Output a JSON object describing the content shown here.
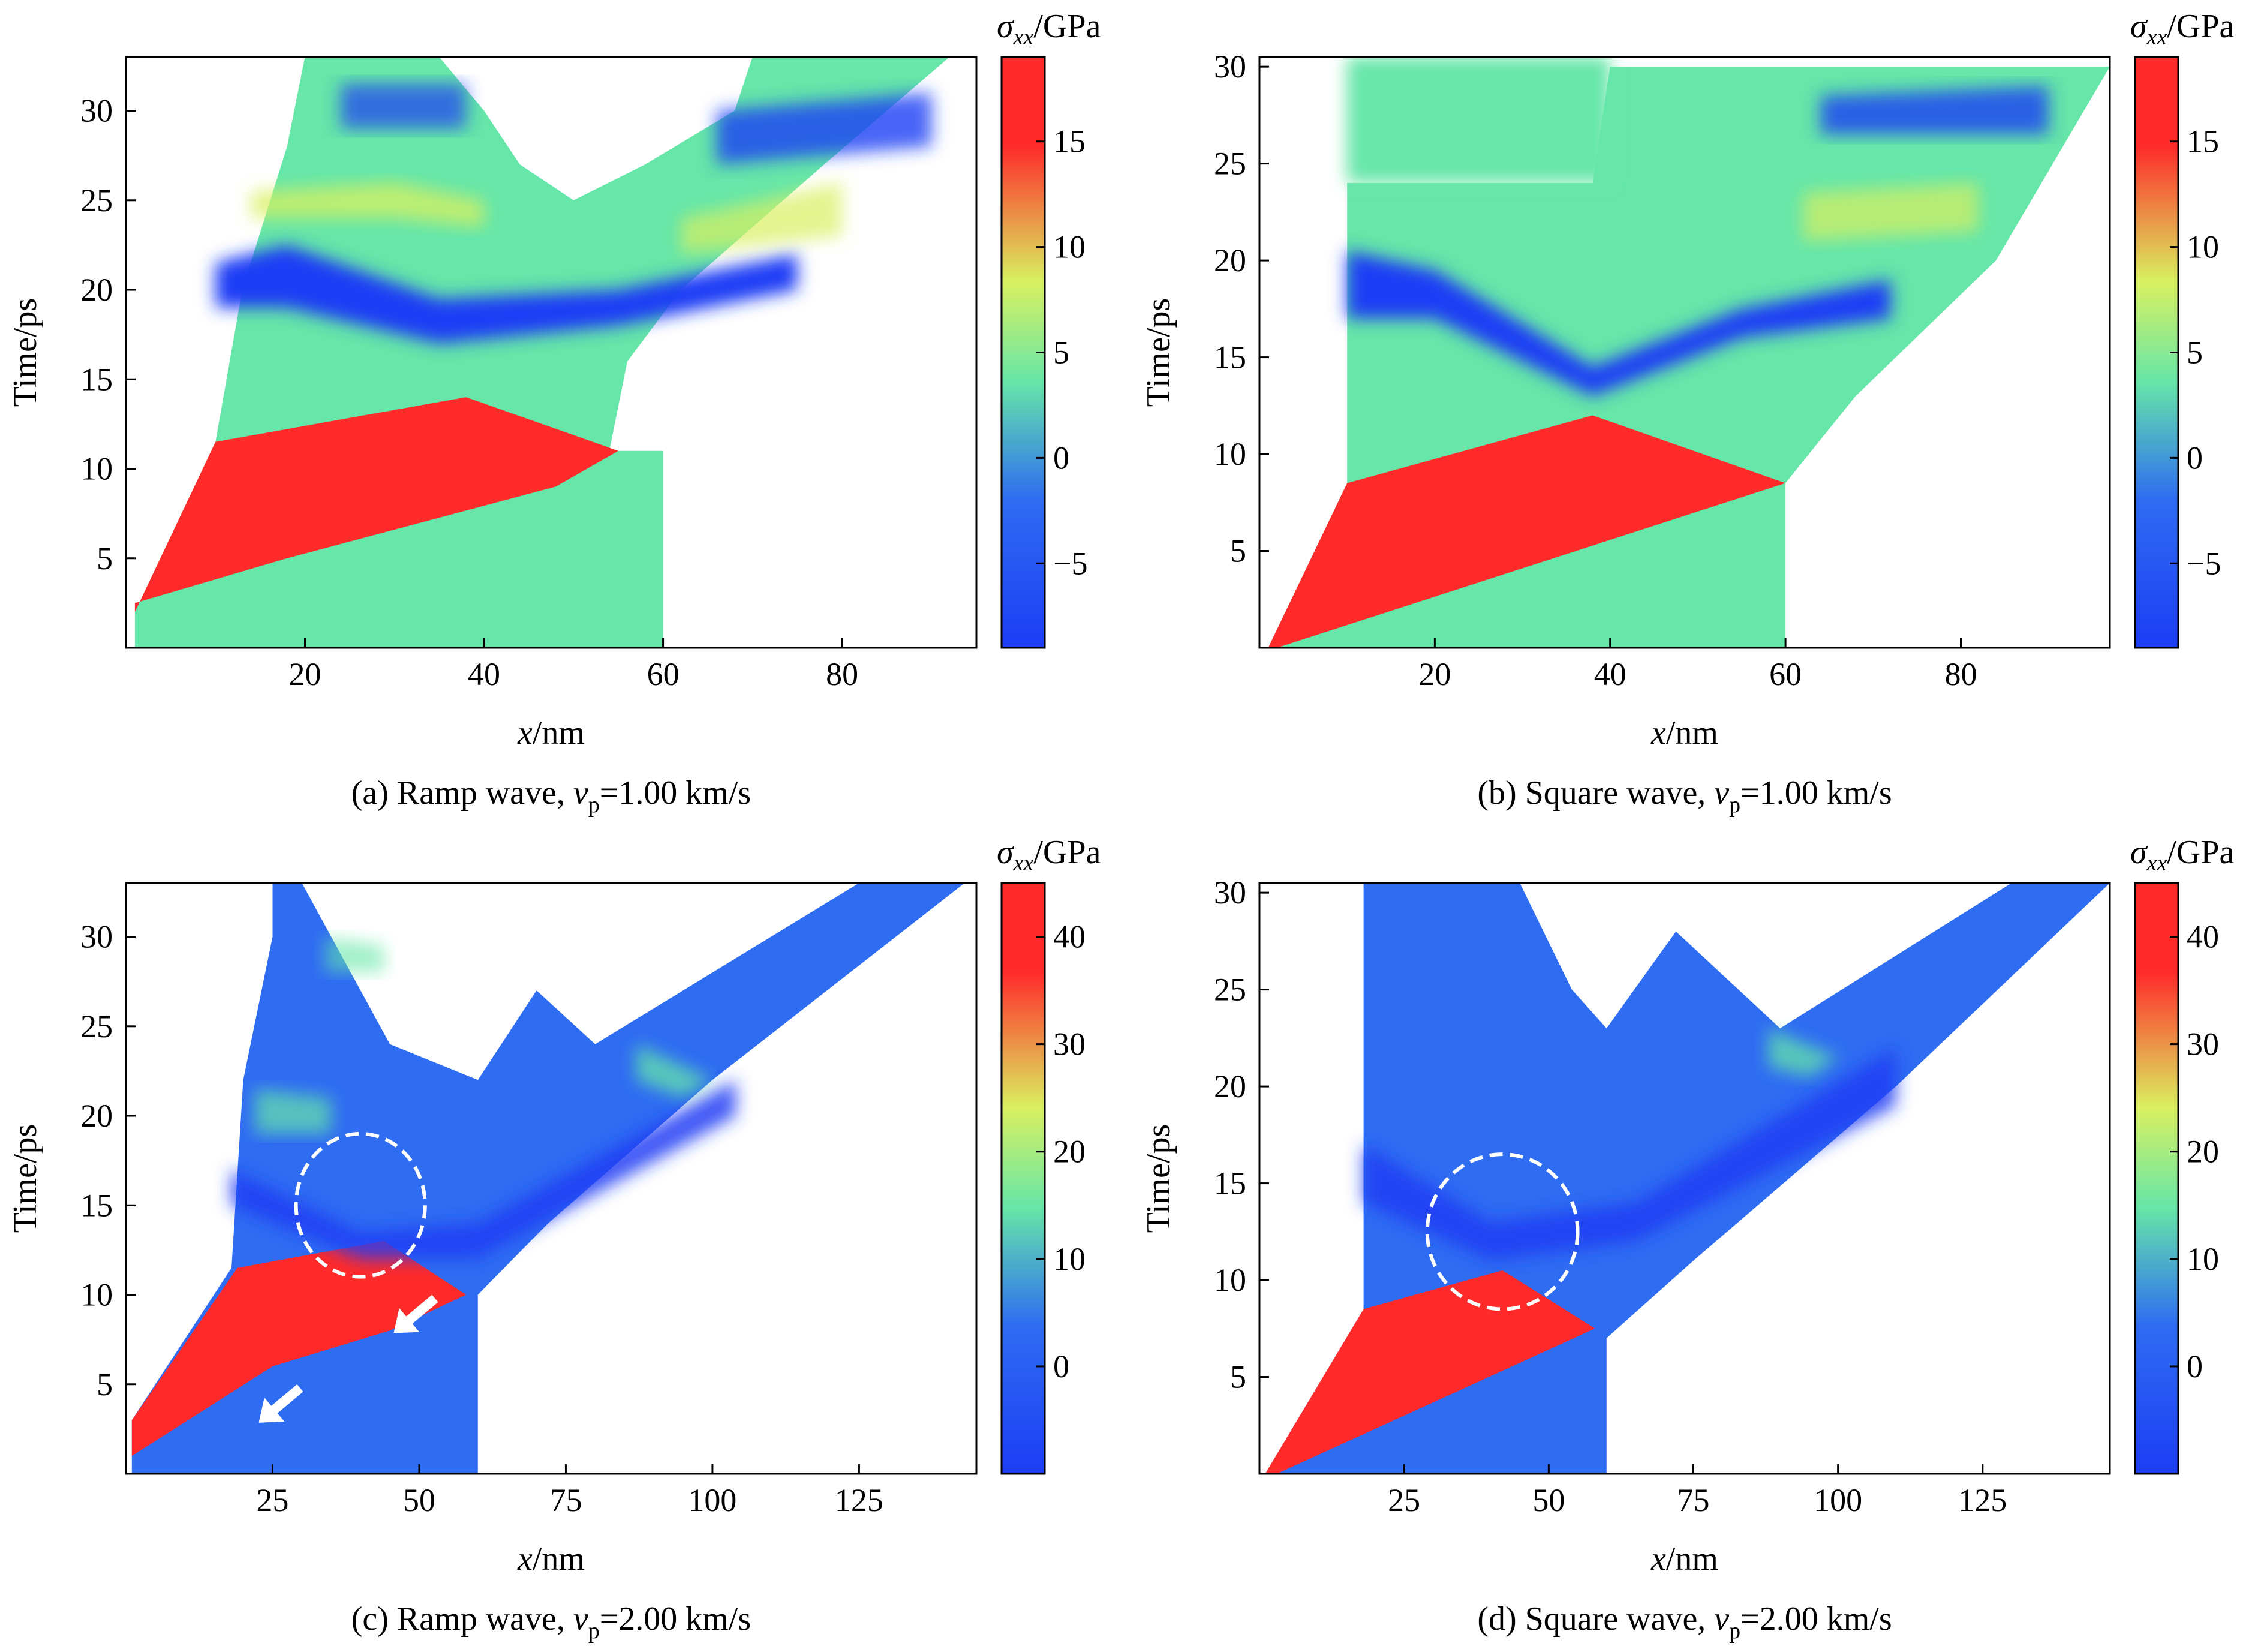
{
  "colors": {
    "red": "#ff2a2a",
    "blue": "#1d3df5",
    "mid_blue": "#2e6cf2",
    "cyan": "#66e6a8",
    "yellow": "#d9f060",
    "white": "#ffffff"
  },
  "chart_data": [
    {
      "id": "a",
      "type": "heatmap",
      "caption_prefix": "(a) Ramp wave, ",
      "caption_var": "v",
      "caption_sub": "p",
      "caption_suffix": "=1.00 km/s",
      "xlabel_var": "x",
      "xlabel_unit": "/nm",
      "ylabel": "Time/ps",
      "colorbar_label_sym": "σ",
      "colorbar_label_sub": "xx",
      "colorbar_label_unit": "/GPa",
      "xlim": [
        0,
        95
      ],
      "ylim": [
        0,
        33
      ],
      "xticks": [
        20,
        40,
        60,
        80
      ],
      "xtick_labels": [
        "20",
        "40",
        "60",
        "80"
      ],
      "yticks": [
        5,
        10,
        15,
        20,
        25,
        30
      ],
      "ytick_labels": [
        "5",
        "10",
        "15",
        "20",
        "25",
        "30"
      ],
      "clim": [
        -9,
        19
      ],
      "cticks": [
        -5,
        0,
        5,
        10,
        15
      ],
      "ctick_labels": [
        "−5",
        "0",
        "5",
        "10",
        "15"
      ],
      "annotations": []
    },
    {
      "id": "b",
      "type": "heatmap",
      "caption_prefix": "(b) Square wave, ",
      "caption_var": "v",
      "caption_sub": "p",
      "caption_suffix": "=1.00 km/s",
      "xlabel_var": "x",
      "xlabel_unit": "/nm",
      "ylabel": "Time/ps",
      "colorbar_label_sym": "σ",
      "colorbar_label_sub": "xx",
      "colorbar_label_unit": "/GPa",
      "xlim": [
        0,
        97
      ],
      "ylim": [
        0,
        30.5
      ],
      "xticks": [
        20,
        40,
        60,
        80
      ],
      "xtick_labels": [
        "20",
        "40",
        "60",
        "80"
      ],
      "yticks": [
        5,
        10,
        15,
        20,
        25,
        30
      ],
      "ytick_labels": [
        "5",
        "10",
        "15",
        "20",
        "25",
        "30"
      ],
      "clim": [
        -9,
        19
      ],
      "cticks": [
        -5,
        0,
        5,
        10,
        15
      ],
      "ctick_labels": [
        "−5",
        "0",
        "5",
        "10",
        "15"
      ],
      "annotations": []
    },
    {
      "id": "c",
      "type": "heatmap",
      "caption_prefix": "(c) Ramp wave, ",
      "caption_var": "v",
      "caption_sub": "p",
      "caption_suffix": "=2.00 km/s",
      "xlabel_var": "x",
      "xlabel_unit": "/nm",
      "ylabel": "Time/ps",
      "colorbar_label_sym": "σ",
      "colorbar_label_sub": "xx",
      "colorbar_label_unit": "/GPa",
      "xlim": [
        0,
        145
      ],
      "ylim": [
        0,
        33
      ],
      "xticks": [
        25,
        50,
        75,
        100,
        125
      ],
      "xtick_labels": [
        "25",
        "50",
        "75",
        "100",
        "125"
      ],
      "yticks": [
        5,
        10,
        15,
        20,
        25,
        30
      ],
      "ytick_labels": [
        "5",
        "10",
        "15",
        "20",
        "25",
        "30"
      ],
      "clim": [
        -10,
        45
      ],
      "cticks": [
        0,
        10,
        20,
        30,
        40
      ],
      "ctick_labels": [
        "0",
        "10",
        "20",
        "30",
        "40"
      ],
      "annotations": [
        "dashed-circle",
        "arrow",
        "arrow"
      ]
    },
    {
      "id": "d",
      "type": "heatmap",
      "caption_prefix": "(d) Square wave, ",
      "caption_var": "v",
      "caption_sub": "p",
      "caption_suffix": "=2.00 km/s",
      "xlabel_var": "x",
      "xlabel_unit": "/nm",
      "ylabel": "Time/ps",
      "colorbar_label_sym": "σ",
      "colorbar_label_sub": "xx",
      "colorbar_label_unit": "/GPa",
      "xlim": [
        0,
        147
      ],
      "ylim": [
        0,
        30.5
      ],
      "xticks": [
        25,
        50,
        75,
        100,
        125
      ],
      "xtick_labels": [
        "25",
        "50",
        "75",
        "100",
        "125"
      ],
      "yticks": [
        5,
        10,
        15,
        20,
        25,
        30
      ],
      "ytick_labels": [
        "5",
        "10",
        "15",
        "20",
        "25",
        "30"
      ],
      "clim": [
        -10,
        45
      ],
      "cticks": [
        0,
        10,
        20,
        30,
        40
      ],
      "ctick_labels": [
        "0",
        "10",
        "20",
        "30",
        "40"
      ],
      "annotations": [
        "dashed-circle"
      ]
    }
  ]
}
